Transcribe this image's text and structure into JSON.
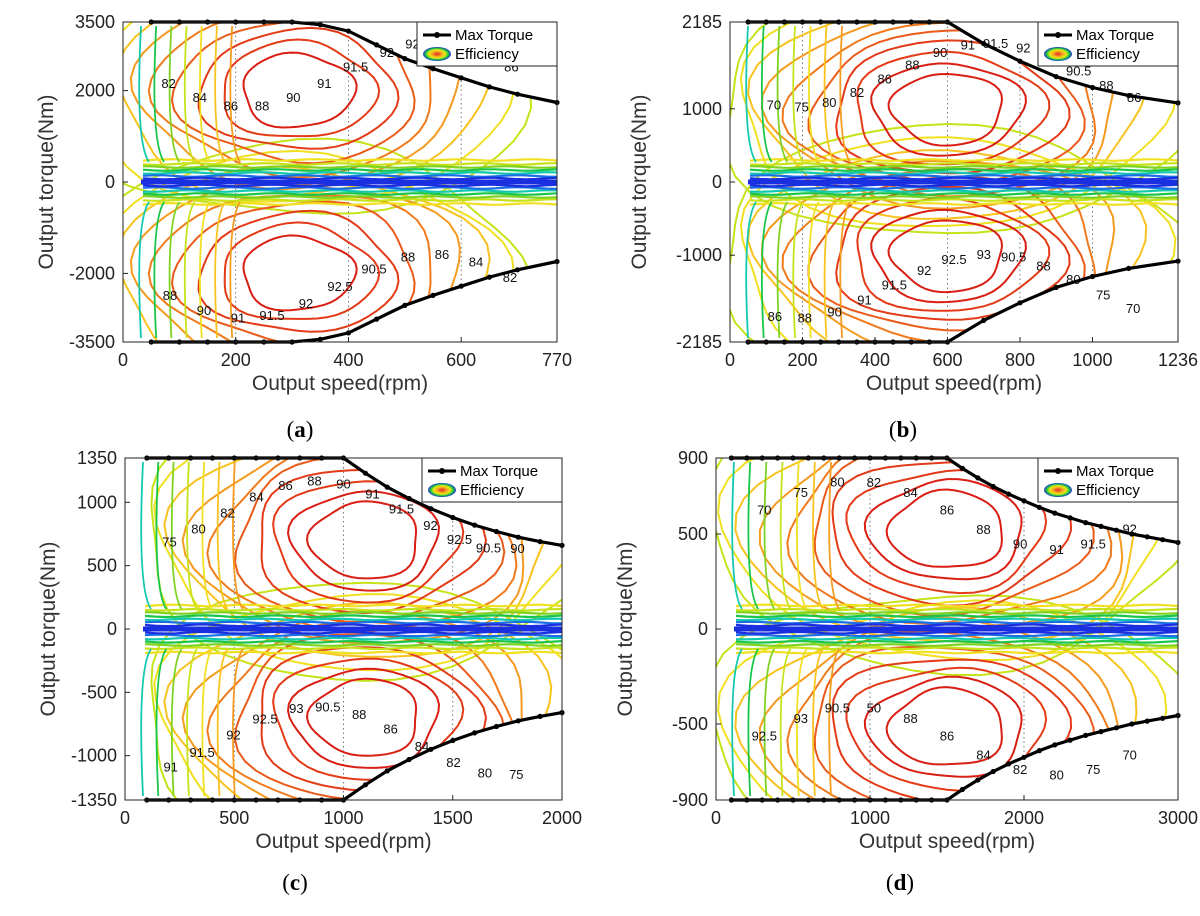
{
  "chart_data": [
    {
      "type": "contour",
      "panel": "a",
      "caption_open": "(",
      "caption_letter": "a",
      "caption_close": ")",
      "xlabel": "Output speed(rpm)",
      "ylabel": "Output torque(Nm)",
      "xlim": [
        0,
        770
      ],
      "ylim": [
        -3500,
        3500
      ],
      "xticks": [
        "0",
        "200",
        "400",
        "600",
        "770"
      ],
      "yticks": [
        "-3500",
        "-2000",
        "0",
        "2000",
        "3500"
      ],
      "vlines": [
        200,
        400,
        600
      ],
      "legend": [
        "Max Torque",
        "Efficiency"
      ],
      "max_torque": {
        "speed": [
          50,
          100,
          150,
          200,
          250,
          300,
          350,
          400,
          450,
          500,
          550,
          600,
          650,
          700,
          770
        ],
        "torque": [
          3500,
          3500,
          3500,
          3500,
          3500,
          3500,
          3440,
          3300,
          3000,
          2700,
          2480,
          2280,
          2080,
          1920,
          1740
        ]
      },
      "efficiency_labels": [
        "82",
        "84",
        "86",
        "88",
        "90",
        "91",
        "91.5",
        "92",
        "92.5",
        "90.5",
        "84",
        "86",
        "88",
        "90",
        "91",
        "91.5",
        "92",
        "92.5",
        "90.5",
        "88",
        "86",
        "84",
        "82"
      ],
      "hotspot": {
        "speed": 310,
        "torque": 2000
      },
      "peak_efficiency": 92.5
    },
    {
      "type": "contour",
      "panel": "b",
      "caption_open": "(",
      "caption_letter": "b",
      "caption_close": ")",
      "xlabel": "Output speed(rpm)",
      "ylabel": "Output torque(Nm)",
      "xlim": [
        0,
        1236
      ],
      "ylim": [
        -2185,
        2185
      ],
      "xticks": [
        "0",
        "200",
        "400",
        "600",
        "800",
        "1000",
        "1236"
      ],
      "yticks": [
        "-2185",
        "-1000",
        "0",
        "1000",
        "2185"
      ],
      "vlines": [
        200,
        600,
        800,
        1000
      ],
      "legend": [
        "Max Torque",
        "Efficiency"
      ],
      "max_torque": {
        "speed": [
          50,
          100,
          150,
          200,
          250,
          300,
          350,
          400,
          450,
          500,
          550,
          600,
          700,
          800,
          900,
          1000,
          1100,
          1236
        ],
        "torque": [
          2185,
          2185,
          2185,
          2185,
          2185,
          2185,
          2185,
          2185,
          2185,
          2185,
          2185,
          2185,
          1890,
          1650,
          1440,
          1290,
          1180,
          1080
        ]
      },
      "efficiency_labels": [
        "70",
        "75",
        "80",
        "82",
        "86",
        "88",
        "90",
        "91",
        "91.5",
        "92",
        "92.5",
        "90.5",
        "88",
        "86",
        "86",
        "88",
        "90",
        "91",
        "91.5",
        "92",
        "92.5",
        "93",
        "90.5",
        "88",
        "80",
        "75",
        "70"
      ],
      "hotspot": {
        "speed": 600,
        "torque": 1000
      },
      "peak_efficiency": 93
    },
    {
      "type": "contour",
      "panel": "c",
      "caption_open": "(",
      "caption_letter": "c",
      "caption_close": ")",
      "xlabel": "Output speed(rpm)",
      "ylabel": "Output torque(Nm)",
      "xlim": [
        0,
        2000
      ],
      "ylim": [
        -1350,
        1350
      ],
      "xticks": [
        "0",
        "500",
        "1000",
        "1500",
        "2000"
      ],
      "yticks": [
        "-1350",
        "-1000",
        "-500",
        "0",
        "500",
        "1000",
        "1350"
      ],
      "vlines": [
        500,
        1000,
        1500
      ],
      "legend": [
        "Max Torque",
        "Efficiency"
      ],
      "max_torque": {
        "speed": [
          100,
          200,
          300,
          400,
          500,
          600,
          700,
          800,
          900,
          1000,
          1100,
          1200,
          1300,
          1400,
          1500,
          1600,
          1700,
          1800,
          1900,
          2000
        ],
        "torque": [
          1350,
          1350,
          1350,
          1350,
          1350,
          1350,
          1350,
          1350,
          1350,
          1350,
          1230,
          1120,
          1030,
          950,
          880,
          820,
          770,
          725,
          690,
          660
        ]
      },
      "efficiency_labels": [
        "75",
        "80",
        "82",
        "84",
        "86",
        "88",
        "90",
        "91",
        "91.5",
        "92",
        "92.5",
        "90.5",
        "90",
        "91",
        "91.5",
        "92",
        "92.5",
        "93",
        "90.5",
        "88",
        "86",
        "84",
        "82",
        "80",
        "75"
      ],
      "hotspot": {
        "speed": 1100,
        "torque": 700
      },
      "peak_efficiency": 93
    },
    {
      "type": "contour",
      "panel": "d",
      "caption_open": "(",
      "caption_letter": "d",
      "caption_close": ")",
      "xlabel": "Output speed(rpm)",
      "ylabel": "Output torque(Nm)",
      "xlim": [
        0,
        3000
      ],
      "ylim": [
        -900,
        900
      ],
      "xticks": [
        "0",
        "1000",
        "2000",
        "3000"
      ],
      "yticks": [
        "-900",
        "-500",
        "0",
        "500",
        "900"
      ],
      "vlines": [
        1000,
        2000
      ],
      "legend": [
        "Max Torque",
        "Efficiency"
      ],
      "max_torque": {
        "speed": [
          100,
          200,
          300,
          400,
          500,
          600,
          700,
          800,
          900,
          1000,
          1100,
          1200,
          1300,
          1400,
          1500,
          1600,
          1700,
          1800,
          1900,
          2000,
          2100,
          2200,
          2300,
          2400,
          2500,
          2600,
          2700,
          2800,
          2900,
          3000
        ],
        "torque": [
          900,
          900,
          900,
          900,
          900,
          900,
          900,
          900,
          900,
          900,
          900,
          900,
          900,
          900,
          900,
          845,
          795,
          750,
          710,
          675,
          640,
          610,
          585,
          560,
          540,
          520,
          500,
          485,
          470,
          455
        ]
      },
      "efficiency_labels": [
        "70",
        "75",
        "80",
        "82",
        "84",
        "86",
        "88",
        "90",
        "91",
        "91.5",
        "92",
        "92.5",
        "93",
        "90.5",
        "50",
        "88",
        "86",
        "84",
        "82",
        "80",
        "75",
        "70"
      ],
      "hotspot": {
        "speed": 1500,
        "torque": 520
      },
      "peak_efficiency": 93
    }
  ]
}
